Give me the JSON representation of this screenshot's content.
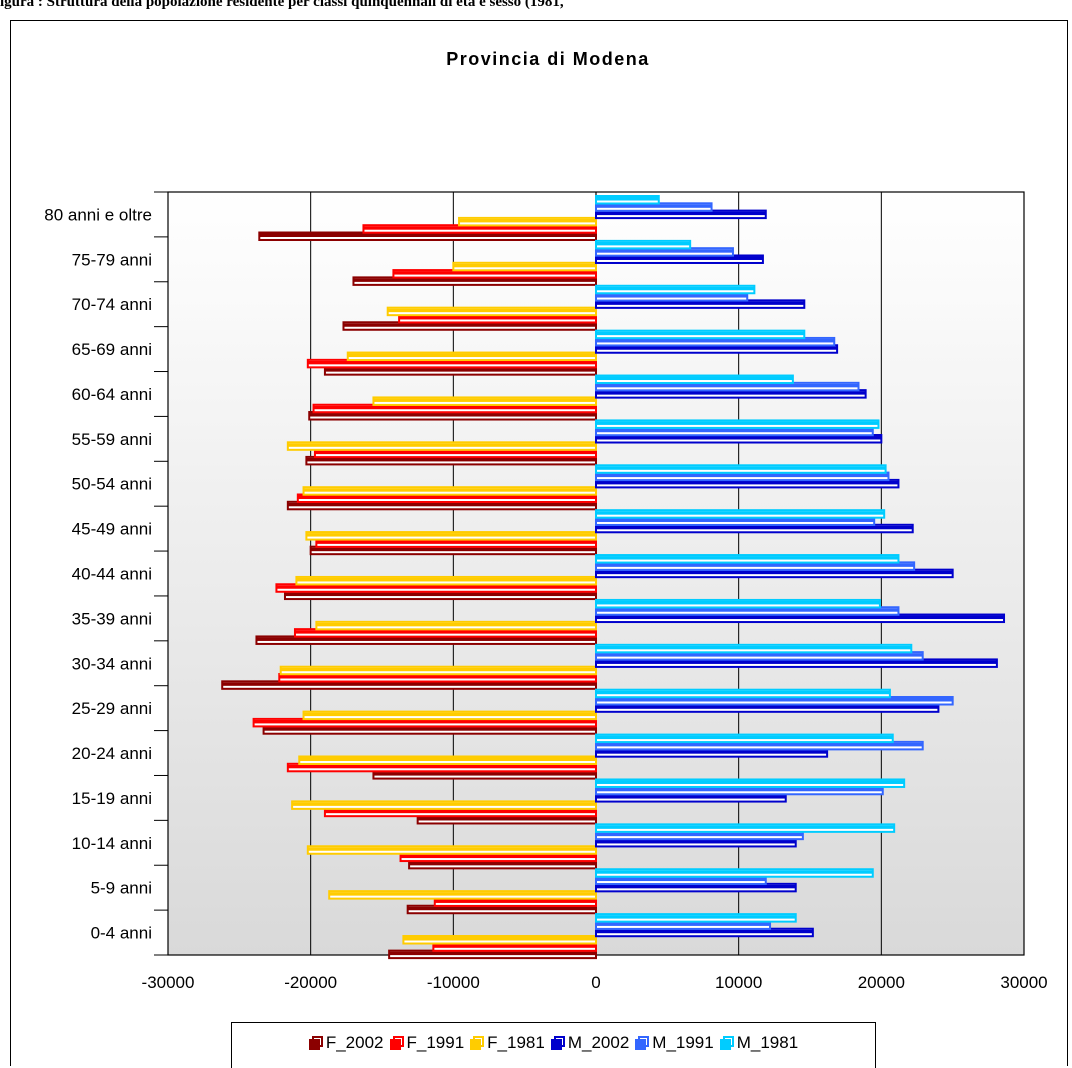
{
  "caption": "igura   : Struttura della popolazione residente per classi quinquennali di età e sesso (1981,",
  "chart_data": {
    "type": "bar",
    "orientation": "horizontal",
    "title": "Provincia di Modena",
    "categories": [
      "0-4 anni",
      "5-9 anni",
      "10-14 anni",
      "15-19 anni",
      "20-24 anni",
      "25-29 anni",
      "30-34 anni",
      "35-39 anni",
      "40-44 anni",
      "45-49 anni",
      "50-54 anni",
      "55-59 anni",
      "60-64 anni",
      "65-69 anni",
      "70-74 anni",
      "75-79 anni",
      "80 anni e oltre"
    ],
    "xlim": [
      -30000,
      30000
    ],
    "xticks": [
      -30000,
      -20000,
      -10000,
      0,
      10000,
      20000,
      30000
    ],
    "grid": true,
    "legend_position": "bottom",
    "series": [
      {
        "name": "F_2002",
        "color": "#8b0000",
        "values": [
          -14500,
          -13200,
          -13100,
          -12500,
          -15600,
          -23300,
          -26200,
          -23800,
          -21800,
          -20000,
          -21600,
          -20300,
          -20100,
          -19000,
          -17700,
          -17000,
          -23600
        ]
      },
      {
        "name": "F_1991",
        "color": "#ff0000",
        "values": [
          -11400,
          -11300,
          -13700,
          -19000,
          -21600,
          -24000,
          -22200,
          -21100,
          -22400,
          -19600,
          -20900,
          -19700,
          -19800,
          -20200,
          -13800,
          -14200,
          -16300
        ]
      },
      {
        "name": "F_1981",
        "color": "#ffcc00",
        "values": [
          -13500,
          -18700,
          -20200,
          -21300,
          -20800,
          -20500,
          -22100,
          -19600,
          -21000,
          -20300,
          -20500,
          -21600,
          -15600,
          -17400,
          -14600,
          -10000,
          -9600
        ]
      },
      {
        "name": "M_2002",
        "color": "#0000cc",
        "values": [
          15200,
          14000,
          14000,
          13300,
          16200,
          24000,
          28100,
          28600,
          25000,
          22200,
          21200,
          20000,
          18900,
          16900,
          14600,
          11700,
          11900
        ]
      },
      {
        "name": "M_1991",
        "color": "#3366ff",
        "values": [
          12200,
          11900,
          14500,
          20100,
          22900,
          25000,
          22900,
          21200,
          22300,
          19500,
          20500,
          19400,
          18400,
          16700,
          10600,
          9600,
          8100
        ]
      },
      {
        "name": "M_1981",
        "color": "#00ccff",
        "values": [
          14000,
          19400,
          20900,
          21600,
          20800,
          20600,
          22100,
          19900,
          21200,
          20200,
          20300,
          19800,
          13800,
          14600,
          11100,
          6600,
          4400
        ]
      }
    ]
  }
}
